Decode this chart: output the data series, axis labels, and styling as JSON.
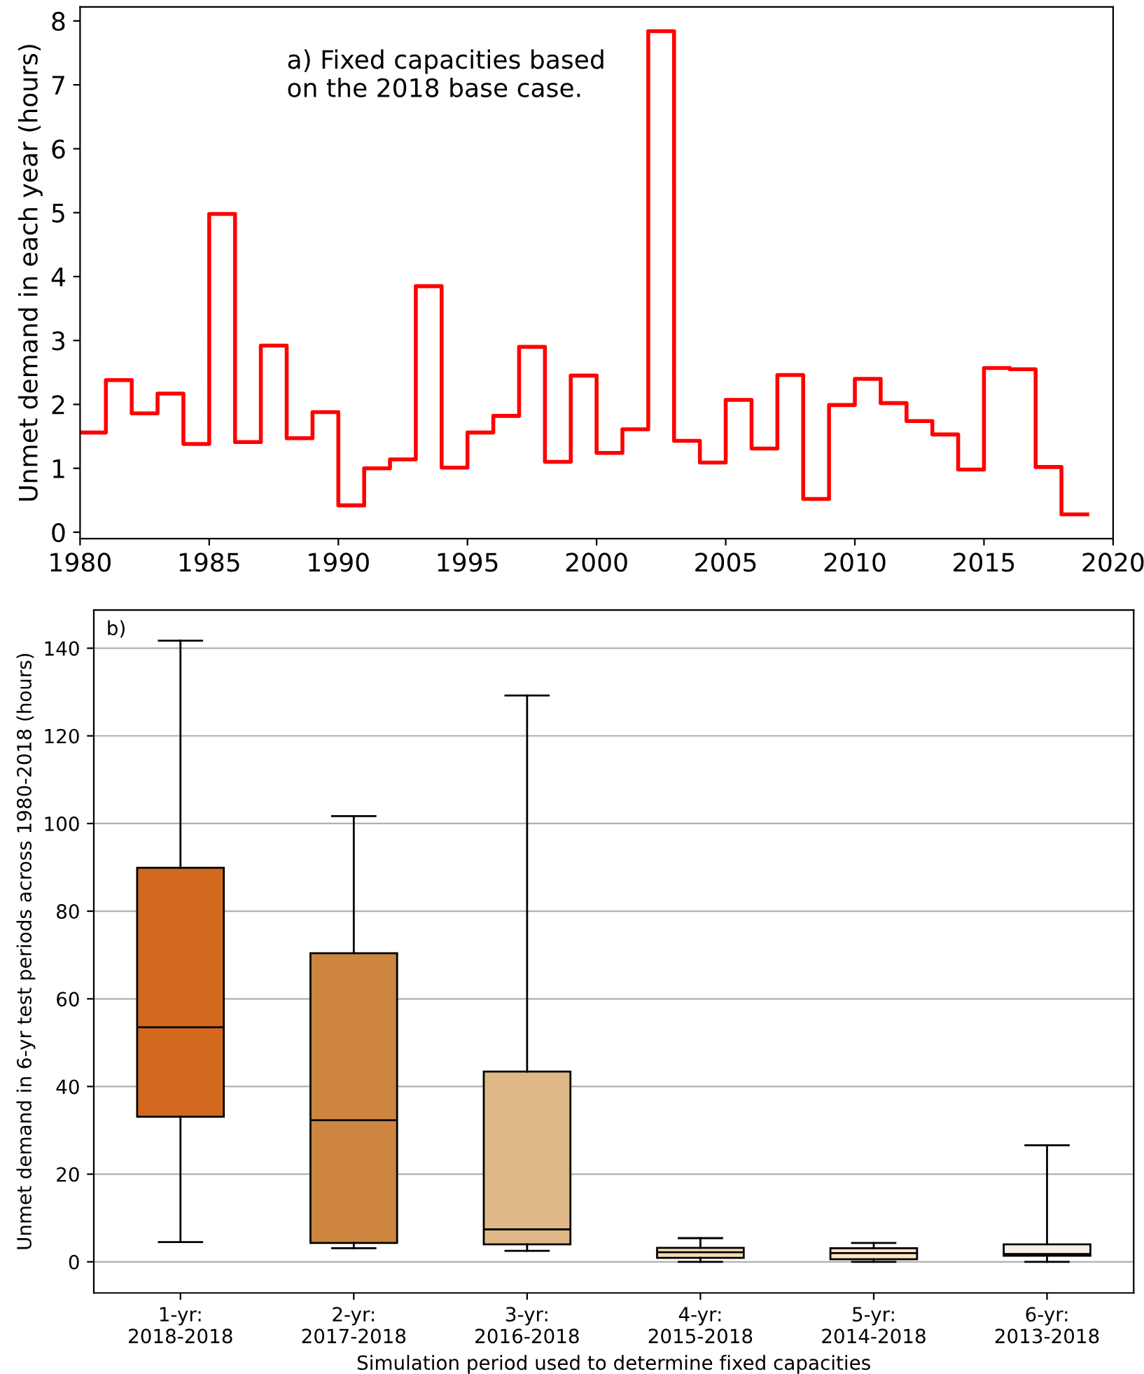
{
  "chart_data": [
    {
      "type": "step",
      "ylabel": "Unmet demand in each year (hours)",
      "annotations": [
        "a) Fixed capacities based\non the 2018 base case."
      ],
      "x": [
        1980,
        1981,
        1982,
        1983,
        1984,
        1985,
        1986,
        1987,
        1988,
        1989,
        1990,
        1991,
        1992,
        1993,
        1994,
        1995,
        1996,
        1997,
        1998,
        1999,
        2000,
        2001,
        2002,
        2003,
        2004,
        2005,
        2006,
        2007,
        2008,
        2009,
        2010,
        2011,
        2012,
        2013,
        2014,
        2015,
        2016,
        2017,
        2018,
        2019
      ],
      "series": [
        {
          "color": "#ff0000",
          "values": [
            1.56,
            2.38,
            1.86,
            2.17,
            1.38,
            4.98,
            1.41,
            2.92,
            1.47,
            1.88,
            0.42,
            1.0,
            1.14,
            3.85,
            1.01,
            1.56,
            1.82,
            2.9,
            1.1,
            2.45,
            1.24,
            1.61,
            7.84,
            1.43,
            1.09,
            2.07,
            1.31,
            2.46,
            0.52,
            1.99,
            2.4,
            2.02,
            1.74,
            1.53,
            0.98,
            2.57,
            2.55,
            1.02,
            0.28,
            0.28
          ]
        }
      ],
      "xlim": [
        1980,
        2020
      ],
      "xticks": [
        1980,
        1985,
        1990,
        1995,
        2000,
        2005,
        2010,
        2015,
        2020
      ],
      "ylim": [
        -0.1,
        8.22
      ],
      "yticks": [
        0,
        1,
        2,
        3,
        4,
        5,
        6,
        7,
        8
      ],
      "grid": false
    },
    {
      "type": "box",
      "xlabel": "Simulation period used to determine fixed capacities",
      "ylabel": "Unmet demand in 6-yr test periods across 1980-2018 (hours)",
      "annotations": [
        "b)"
      ],
      "categories": [
        "1-yr:\n2018-2018",
        "2-yr:\n2017-2018",
        "3-yr:\n2016-2018",
        "4-yr:\n2015-2018",
        "5-yr:\n2014-2018",
        "6-yr:\n2013-2018"
      ],
      "colors": [
        "#d2691e",
        "#cd853f",
        "#deb887",
        "#f5deb3",
        "#ffe4c4",
        "#faf0e6"
      ],
      "boxes": [
        {
          "low": 4.5,
          "q1": 33.1,
          "median": 53.5,
          "q3": 89.9,
          "high": 141.7
        },
        {
          "low": 3.1,
          "q1": 4.3,
          "median": 32.3,
          "q3": 70.4,
          "high": 101.7
        },
        {
          "low": 2.5,
          "q1": 4.0,
          "median": 7.4,
          "q3": 43.4,
          "high": 129.2
        },
        {
          "low": 0,
          "q1": 0.9,
          "median": 2.2,
          "q3": 3.2,
          "high": 5.4
        },
        {
          "low": 0,
          "q1": 0.6,
          "median": 2.0,
          "q3": 3.1,
          "high": 4.3
        },
        {
          "low": 0,
          "q1": 1.4,
          "median": 1.8,
          "q3": 4.0,
          "high": 26.6
        }
      ],
      "ylim": [
        -7.1,
        148.7
      ],
      "yticks": [
        0,
        20,
        40,
        60,
        80,
        100,
        120,
        140
      ],
      "grid": "y"
    }
  ]
}
